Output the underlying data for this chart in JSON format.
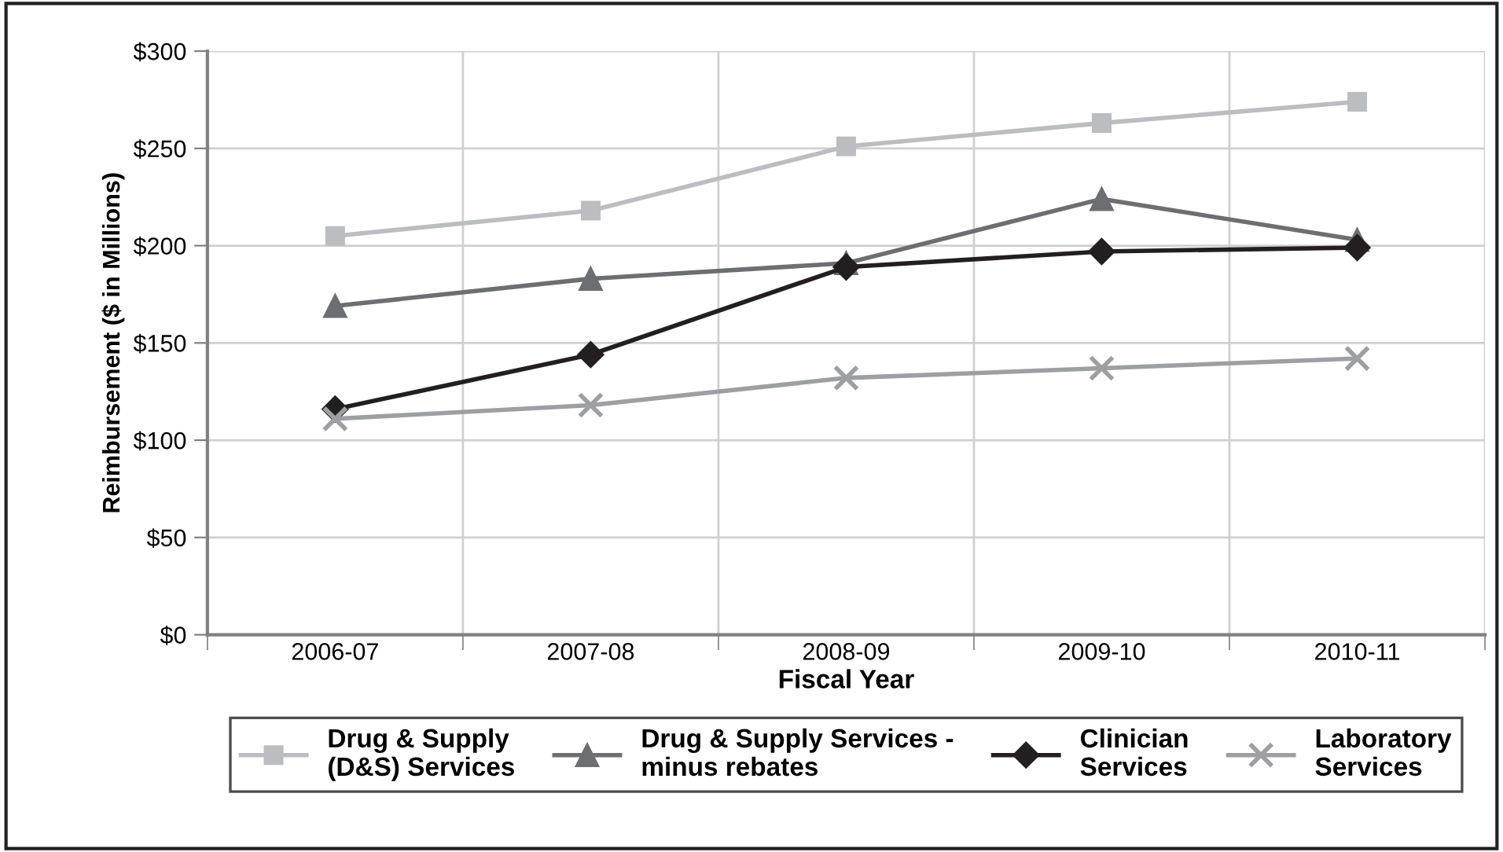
{
  "chart_data": {
    "type": "line",
    "xlabel": "Fiscal Year",
    "ylabel": "Reimbursement ($ in Millions)",
    "categories": [
      "2006-07",
      "2007-08",
      "2008-09",
      "2009-10",
      "2010-11"
    ],
    "series": [
      {
        "name": "Drug & Supply\n(D&S) Services",
        "color": "#bcbdc0",
        "marker": "square",
        "values": [
          205,
          218,
          251,
          263,
          274
        ]
      },
      {
        "name": "Drug & Supply Services -\nminus rebates",
        "color": "#6d6e71",
        "marker": "triangle",
        "values": [
          169,
          183,
          191,
          224,
          203
        ]
      },
      {
        "name": "Clinician\nServices",
        "color": "#231f20",
        "marker": "diamond",
        "values": [
          116,
          144,
          189,
          197,
          199
        ]
      },
      {
        "name": "Laboratory\nServices",
        "color": "#9d9fa2",
        "marker": "cross",
        "values": [
          111,
          118,
          132,
          137,
          142
        ]
      }
    ],
    "ylim": [
      0,
      300
    ],
    "yticks": [
      {
        "value": 0,
        "label": "$0"
      },
      {
        "value": 50,
        "label": "$50"
      },
      {
        "value": 100,
        "label": "$100"
      },
      {
        "value": 150,
        "label": "$150"
      },
      {
        "value": 200,
        "label": "$200"
      },
      {
        "value": 250,
        "label": "$250"
      },
      {
        "value": 300,
        "label": "$300"
      }
    ],
    "grid": true,
    "legend": "bottom",
    "line_style": "solid"
  }
}
